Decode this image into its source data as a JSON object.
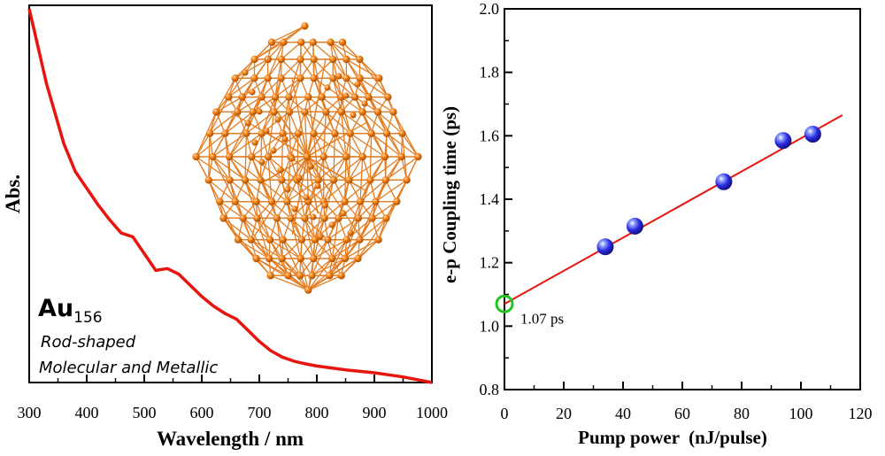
{
  "chart_data": [
    {
      "type": "line",
      "xlabel": "Wavelength / nm",
      "ylabel": "Abs.",
      "xlim": [
        300,
        1000
      ],
      "xticks": [
        300,
        400,
        500,
        600,
        700,
        800,
        900,
        1000
      ],
      "yticks_shown": false,
      "series": [
        {
          "color": "#e8150f",
          "x": [
            300,
            315,
            330,
            345,
            360,
            380,
            400,
            420,
            440,
            460,
            480,
            500,
            520,
            540,
            560,
            580,
            600,
            620,
            640,
            660,
            680,
            700,
            720,
            740,
            760,
            780,
            800,
            850,
            900,
            950,
            1000
          ],
          "y": [
            1.0,
            0.9,
            0.8,
            0.72,
            0.64,
            0.565,
            0.52,
            0.475,
            0.435,
            0.4,
            0.39,
            0.345,
            0.3,
            0.305,
            0.29,
            0.26,
            0.23,
            0.205,
            0.185,
            0.17,
            0.14,
            0.11,
            0.085,
            0.068,
            0.057,
            0.05,
            0.044,
            0.034,
            0.026,
            0.015,
            0.0
          ]
        }
      ],
      "annotations": {
        "name": "Au",
        "subscript": "156",
        "line1": "Rod-shaped",
        "line2": "Molecular and Metallic"
      },
      "inset_image": "gold-cluster-structure"
    },
    {
      "type": "scatter",
      "xlabel": "Pump power  (nJ/pulse)",
      "ylabel": "e-p Coupling time (ps)",
      "xlim": [
        0,
        120
      ],
      "ylim": [
        0.8,
        2.0
      ],
      "xticks": [
        0,
        20,
        40,
        60,
        80,
        100,
        120
      ],
      "yticks": [
        0.8,
        1.0,
        1.2,
        1.4,
        1.6,
        1.8,
        2.0
      ],
      "ytick_labels": [
        "0.8",
        "1.0",
        "1.2",
        "1.4",
        "1.6",
        "1.8",
        "2.0"
      ],
      "points": [
        {
          "x": 34,
          "y": 1.25
        },
        {
          "x": 44,
          "y": 1.315
        },
        {
          "x": 74,
          "y": 1.455
        },
        {
          "x": 94,
          "y": 1.585
        },
        {
          "x": 104,
          "y": 1.605
        }
      ],
      "fit_line": {
        "x": [
          0,
          114
        ],
        "y": [
          1.07,
          1.665
        ],
        "color": "#e8150f"
      },
      "intercept_marker": {
        "x": 0,
        "y": 1.07,
        "color": "#22c41e"
      },
      "intercept_label": "1.07 ps",
      "marker_color": "#2a2ae0"
    }
  ],
  "colors": {
    "gold_atom": "#f07f12",
    "gold_bond": "#e0700c",
    "axis": "#000000"
  }
}
